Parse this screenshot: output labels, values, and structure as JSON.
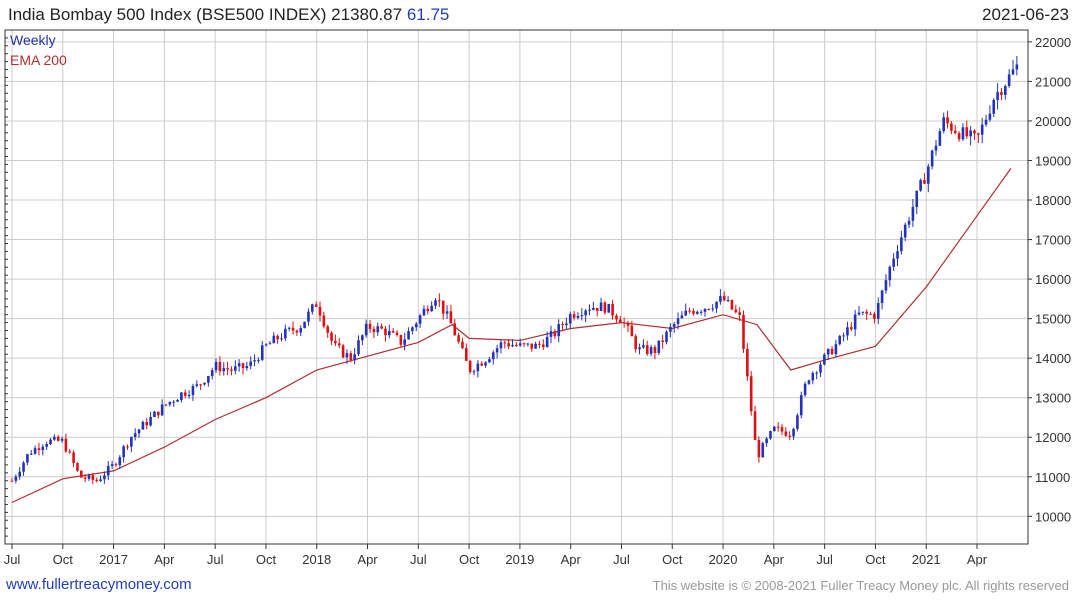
{
  "header": {
    "title": "India Bombay 500 Index (BSE500 INDEX) 21380.87",
    "change": "61.75",
    "date": "2021-06-23"
  },
  "footer": {
    "website": "www.fullertreacymoney.com",
    "copyright": "This website is © 2008-2021 Fuller Treacy Money plc. All rights reserved"
  },
  "colors": {
    "up": "#2233bb",
    "down": "#dd1111",
    "ema": "#b03030",
    "grid": "#cccccc",
    "axis": "#333333"
  },
  "chart_data": {
    "type": "line",
    "title": "India Bombay 500 Index (BSE500 INDEX)",
    "legend": [
      "Weekly",
      "EMA 200"
    ],
    "legend_placement": "top-left",
    "grid": true,
    "ylim": [
      9300,
      22300
    ],
    "y_ticks": [
      10000,
      11000,
      12000,
      13000,
      14000,
      15000,
      16000,
      17000,
      18000,
      19000,
      20000,
      21000,
      22000
    ],
    "x_ticks": [
      "Jul",
      "Oct",
      "2017",
      "Apr",
      "Jul",
      "Oct",
      "2018",
      "Apr",
      "Jul",
      "Oct",
      "2019",
      "Apr",
      "Jul",
      "Oct",
      "2020",
      "Apr",
      "Jul",
      "Oct",
      "2021",
      "Apr"
    ],
    "x_tick_months": [
      "2016-07",
      "2016-10",
      "2017-01",
      "2017-04",
      "2017-07",
      "2017-10",
      "2018-01",
      "2018-04",
      "2018-07",
      "2018-10",
      "2019-01",
      "2019-04",
      "2019-07",
      "2019-10",
      "2020-01",
      "2020-04",
      "2020-07",
      "2020-10",
      "2021-01",
      "2021-04"
    ],
    "series": [
      {
        "name": "Weekly",
        "x": [
          "2016-07",
          "2016-08",
          "2016-09",
          "2016-10",
          "2016-11",
          "2016-12",
          "2017-01",
          "2017-02",
          "2017-03",
          "2017-04",
          "2017-05",
          "2017-06",
          "2017-07",
          "2017-08",
          "2017-09",
          "2017-10",
          "2017-11",
          "2017-12",
          "2018-01",
          "2018-02",
          "2018-03",
          "2018-04",
          "2018-05",
          "2018-06",
          "2018-07",
          "2018-08",
          "2018-09",
          "2018-10",
          "2018-11",
          "2018-12",
          "2019-01",
          "2019-02",
          "2019-03",
          "2019-04",
          "2019-05",
          "2019-06",
          "2019-07",
          "2019-08",
          "2019-09",
          "2019-10",
          "2019-11",
          "2019-12",
          "2020-01",
          "2020-02",
          "2020-03",
          "2020-04",
          "2020-05",
          "2020-06",
          "2020-07",
          "2020-08",
          "2020-09",
          "2020-10",
          "2020-11",
          "2020-12",
          "2021-01",
          "2021-02",
          "2021-03",
          "2021-04",
          "2021-05",
          "2021-06"
        ],
        "values": [
          10900,
          11600,
          11900,
          11900,
          11000,
          10900,
          11300,
          12000,
          12400,
          12800,
          13100,
          13300,
          13800,
          13700,
          13800,
          14300,
          14600,
          14800,
          15400,
          14300,
          14000,
          14800,
          14700,
          14400,
          15000,
          15600,
          14800,
          13700,
          14000,
          14400,
          14300,
          14300,
          14600,
          15100,
          15300,
          15300,
          15000,
          14200,
          14200,
          14800,
          15200,
          15300,
          15500,
          15000,
          11500,
          12200,
          12100,
          13500,
          14000,
          14500,
          15100,
          15100,
          16500,
          17600,
          18700,
          20000,
          19700,
          19500,
          20600,
          21380.87
        ]
      },
      {
        "name": "EMA 200",
        "x": [
          "2016-07",
          "2016-10",
          "2017-01",
          "2017-04",
          "2017-07",
          "2017-10",
          "2018-01",
          "2018-04",
          "2018-07",
          "2018-09",
          "2018-10",
          "2019-01",
          "2019-04",
          "2019-07",
          "2019-10",
          "2020-01",
          "2020-03",
          "2020-05",
          "2020-07",
          "2020-10",
          "2021-01",
          "2021-04",
          "2021-06"
        ],
        "values": [
          10350,
          10950,
          11150,
          11750,
          12450,
          13000,
          13700,
          14050,
          14400,
          14850,
          14500,
          14450,
          14750,
          14900,
          14750,
          15100,
          14850,
          13700,
          13950,
          14300,
          15800,
          17600,
          18800
        ]
      }
    ]
  }
}
